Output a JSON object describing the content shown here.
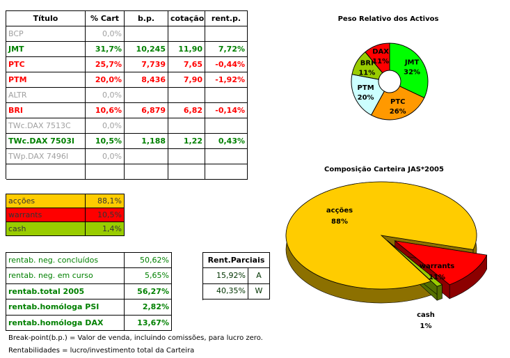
{
  "holdings_table": {
    "headers": [
      "Título",
      "% Cart",
      "b.p.",
      "cotação",
      "rent.p."
    ],
    "rows": [
      {
        "cells": [
          "BCP",
          "0,0%"
        ],
        "color": "#a0a0a0",
        "bold": false
      },
      {
        "cells": [
          "JMT",
          "31,7%",
          "10,245",
          "11,90",
          "7,72%"
        ],
        "color": "#008000",
        "bold": true
      },
      {
        "cells": [
          "PTC",
          "25,7%",
          "7,739",
          "7,65",
          "-0,44%"
        ],
        "color": "#ff0000",
        "bold": true
      },
      {
        "cells": [
          "PTM",
          "20,0%",
          "8,436",
          "7,90",
          "-1,92%"
        ],
        "color": "#ff0000",
        "bold": true
      },
      {
        "cells": [
          "ALTR",
          "0,0%"
        ],
        "color": "#a0a0a0",
        "bold": false
      },
      {
        "cells": [
          "BRI",
          "10,6%",
          "6,879",
          "6,82",
          "-0,14%"
        ],
        "color": "#ff0000",
        "bold": true
      },
      {
        "cells": [
          "TWc.DAX 7513C",
          "0,0%"
        ],
        "color": "#a0a0a0",
        "bold": false
      },
      {
        "cells": [
          "TWc.DAX 7503I",
          "10,5%",
          "1,188",
          "1,22",
          "0,43%"
        ],
        "color": "#008000",
        "bold": true
      },
      {
        "cells": [
          "TWp.DAX 7496I",
          "0,0%"
        ],
        "color": "#a0a0a0",
        "bold": false
      }
    ]
  },
  "allocation_table": {
    "rows": [
      {
        "cells": [
          "acções",
          "88,1%"
        ],
        "color": "#ffcc00"
      },
      {
        "cells": [
          "warrants",
          "10,5%"
        ],
        "color": "#ff0000"
      },
      {
        "cells": [
          "cash",
          "1,4%"
        ],
        "color": "#99cc00"
      }
    ]
  },
  "returns_table": {
    "rows": [
      {
        "cells": [
          "rentab. neg. concluídos",
          "50,62%"
        ],
        "bold": false
      },
      {
        "cells": [
          "rentab. neg. em curso",
          "5,65%"
        ],
        "bold": false
      },
      {
        "cells": [
          "rentab.total 2005",
          "56,27%"
        ],
        "bold": true
      },
      {
        "cells": [
          "rentab.homóloga PSI",
          "2,82%"
        ],
        "bold": true
      },
      {
        "cells": [
          "rentab.homóloga DAX",
          "13,67%"
        ],
        "bold": true
      }
    ]
  },
  "partial_returns_table": {
    "header": "Rent.Parciais",
    "rows": [
      [
        "15,92%",
        "A"
      ],
      [
        "40,35%",
        "W"
      ]
    ]
  },
  "notes": [
    "Break-point(b.p.) = Valor de venda, incluindo comissões, para lucro zero.",
    "Rentabilidades = lucro/investimento total da Carteira"
  ],
  "chart_data": [
    {
      "type": "donut",
      "title": "Peso Relativo dos Activos",
      "categories": [
        "JMT",
        "PTC",
        "PTM",
        "BRI",
        "DAX"
      ],
      "values": [
        32,
        26,
        20,
        11,
        11
      ],
      "value_labels": [
        "32%",
        "26%",
        "20%",
        "11%",
        "11%"
      ],
      "colors": [
        "#00ff00",
        "#ff9900",
        "#ccffff",
        "#99cc00",
        "#ff0000"
      ]
    },
    {
      "type": "pie3d",
      "title": "Composição Carteira JAS*2005",
      "categories": [
        "acções",
        "warrants",
        "cash"
      ],
      "values": [
        88,
        11,
        1
      ],
      "value_labels": [
        "88%",
        "11%",
        "1%"
      ],
      "colors": [
        "#ffcc00",
        "#ff0000",
        "#99cc00"
      ]
    }
  ]
}
